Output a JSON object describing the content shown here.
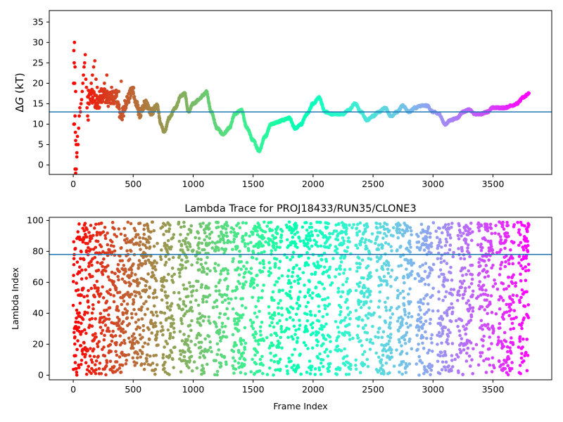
{
  "chart_data": [
    {
      "type": "scatter",
      "title": "",
      "xlabel": "",
      "ylabel": "ΔG (kT)",
      "ylabel_parts": [
        "Δ",
        "G",
        " (kT)"
      ],
      "xlim": [
        -200,
        3990
      ],
      "ylim": [
        -2.3,
        37.8
      ],
      "xticks": [
        0,
        500,
        1000,
        1500,
        2000,
        2500,
        3000,
        3500
      ],
      "yticks": [
        0,
        5,
        10,
        15,
        20,
        25,
        30,
        35
      ],
      "hline": 13.0,
      "hline_color": "#1f77b4",
      "colormap": "rainbow",
      "grid": false,
      "x_max": 3800,
      "anchors": [
        [
          120,
          16
        ],
        [
          150,
          17
        ],
        [
          200,
          15
        ],
        [
          250,
          17.5
        ],
        [
          300,
          16
        ],
        [
          350,
          17
        ],
        [
          400,
          12
        ],
        [
          450,
          16
        ],
        [
          500,
          18.5
        ],
        [
          520,
          15
        ],
        [
          560,
          12.5
        ],
        [
          600,
          15
        ],
        [
          650,
          13
        ],
        [
          700,
          14.5
        ],
        [
          730,
          10
        ],
        [
          760,
          8
        ],
        [
          800,
          11.5
        ],
        [
          850,
          14
        ],
        [
          900,
          17
        ],
        [
          930,
          17.5
        ],
        [
          960,
          13
        ],
        [
          1000,
          15
        ],
        [
          1050,
          16
        ],
        [
          1080,
          17
        ],
        [
          1110,
          18
        ],
        [
          1150,
          13
        ],
        [
          1200,
          9
        ],
        [
          1250,
          7.5
        ],
        [
          1300,
          9
        ],
        [
          1350,
          12.5
        ],
        [
          1400,
          13.5
        ],
        [
          1450,
          9
        ],
        [
          1500,
          6
        ],
        [
          1550,
          3.5
        ],
        [
          1600,
          7
        ],
        [
          1650,
          10
        ],
        [
          1700,
          10.5
        ],
        [
          1750,
          11
        ],
        [
          1800,
          11.5
        ],
        [
          1850,
          9
        ],
        [
          1900,
          10
        ],
        [
          1950,
          12.5
        ],
        [
          2000,
          15
        ],
        [
          2050,
          16.5
        ],
        [
          2100,
          13
        ],
        [
          2150,
          12.5
        ],
        [
          2200,
          12.5
        ],
        [
          2250,
          12.5
        ],
        [
          2300,
          13.5
        ],
        [
          2350,
          15
        ],
        [
          2400,
          13
        ],
        [
          2450,
          11
        ],
        [
          2500,
          12
        ],
        [
          2550,
          13
        ],
        [
          2600,
          14
        ],
        [
          2650,
          12
        ],
        [
          2700,
          13
        ],
        [
          2750,
          14.5
        ],
        [
          2800,
          13
        ],
        [
          2850,
          14
        ],
        [
          2900,
          14.5
        ],
        [
          2950,
          14.5
        ],
        [
          3000,
          13
        ],
        [
          3050,
          12.5
        ],
        [
          3100,
          10
        ],
        [
          3150,
          11
        ],
        [
          3200,
          11.5
        ],
        [
          3250,
          13
        ],
        [
          3300,
          13.5
        ],
        [
          3350,
          12.5
        ],
        [
          3400,
          12.5
        ],
        [
          3450,
          13
        ],
        [
          3500,
          14
        ],
        [
          3550,
          14
        ],
        [
          3600,
          14
        ],
        [
          3650,
          14.5
        ],
        [
          3700,
          15
        ],
        [
          3750,
          16.5
        ],
        [
          3800,
          17.5
        ]
      ],
      "early_points": [
        [
          5,
          28
        ],
        [
          10,
          30
        ],
        [
          8,
          25
        ],
        [
          15,
          24
        ],
        [
          3,
          20
        ],
        [
          12,
          20
        ],
        [
          20,
          18
        ],
        [
          5,
          10
        ],
        [
          10,
          10
        ],
        [
          15,
          12
        ],
        [
          18,
          8
        ],
        [
          20,
          6
        ],
        [
          25,
          5
        ],
        [
          30,
          3
        ],
        [
          35,
          7
        ],
        [
          15,
          -1
        ],
        [
          25,
          -1
        ],
        [
          20,
          -2
        ],
        [
          30,
          2
        ],
        [
          40,
          5
        ],
        [
          45,
          9
        ],
        [
          50,
          12
        ],
        [
          55,
          14
        ],
        [
          60,
          13
        ],
        [
          65,
          15
        ],
        [
          70,
          16
        ],
        [
          75,
          18
        ],
        [
          80,
          20
        ],
        [
          85,
          22
        ],
        [
          90,
          24
        ],
        [
          95,
          25
        ],
        [
          100,
          27
        ],
        [
          105,
          21
        ],
        [
          110,
          19
        ],
        [
          115,
          14
        ],
        [
          120,
          12
        ],
        [
          125,
          11
        ],
        [
          130,
          15
        ],
        [
          140,
          18
        ],
        [
          150,
          20
        ],
        [
          160,
          22
        ],
        [
          170,
          24
        ],
        [
          180,
          25.5
        ],
        [
          190,
          21
        ],
        [
          200,
          19
        ],
        [
          210,
          14
        ],
        [
          220,
          18
        ],
        [
          240,
          17
        ],
        [
          260,
          20
        ],
        [
          280,
          22
        ],
        [
          300,
          16
        ],
        [
          320,
          19
        ],
        [
          340,
          15
        ],
        [
          360,
          17
        ],
        [
          380,
          18
        ],
        [
          400,
          20.5
        ],
        [
          420,
          12
        ],
        [
          440,
          14
        ],
        [
          460,
          16
        ],
        [
          480,
          17
        ],
        [
          500,
          19
        ]
      ]
    },
    {
      "type": "scatter",
      "title": "Lambda Trace for PROJ18433/RUN35/CLONE3",
      "xlabel": "Frame Index",
      "ylabel": "Lambda Index",
      "xlim": [
        -200,
        3990
      ],
      "ylim": [
        -3,
        102
      ],
      "xticks": [
        0,
        500,
        1000,
        1500,
        2000,
        2500,
        3000,
        3500
      ],
      "yticks": [
        0,
        20,
        40,
        60,
        80,
        100
      ],
      "hline": 78,
      "hline_color": "#1f77b4",
      "colormap": "rainbow",
      "grid": false,
      "x_max": 3800,
      "n_points": 3800
    }
  ]
}
